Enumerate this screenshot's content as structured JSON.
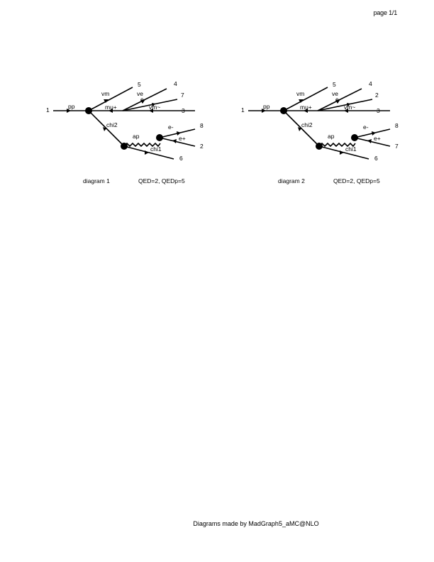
{
  "page": {
    "number_label": "page 1/1"
  },
  "diagrams": [
    {
      "labels": {
        "ext1": "1",
        "ext2": "2",
        "ext3": "3",
        "ext4": "4",
        "ext5": "5",
        "ext6": "6",
        "ext7": "7",
        "ext8": "8",
        "pp": "pp",
        "vm": "vm",
        "ve": "ve",
        "e": "e",
        "mu_plus": "mu+",
        "vm_tilde": "vm~",
        "chi2": "chi2",
        "ap": "ap",
        "e_minus": "e-",
        "e_plus": "e+",
        "chi1": "chi1"
      },
      "caption_left": "diagram 1",
      "caption_right": "QED=2, QEDp=5"
    },
    {
      "labels": {
        "ext1": "1",
        "ext2": "2",
        "ext3": "3",
        "ext4": "4",
        "ext5": "5",
        "ext6": "6",
        "ext7": "7",
        "ext8": "8",
        "pp": "pp",
        "vm": "vm",
        "ve": "ve",
        "e": "e",
        "mu_plus": "mu+",
        "vm_tilde": "vm~",
        "chi2": "chi2",
        "ap": "ap",
        "e_minus": "e-",
        "e_plus": "e+",
        "chi1": "chi1"
      },
      "caption_left": "diagram 2",
      "caption_right": "QED=2, QEDp=5"
    }
  ],
  "footer": {
    "text": "Diagrams made by MadGraph5_aMC@NLO"
  }
}
